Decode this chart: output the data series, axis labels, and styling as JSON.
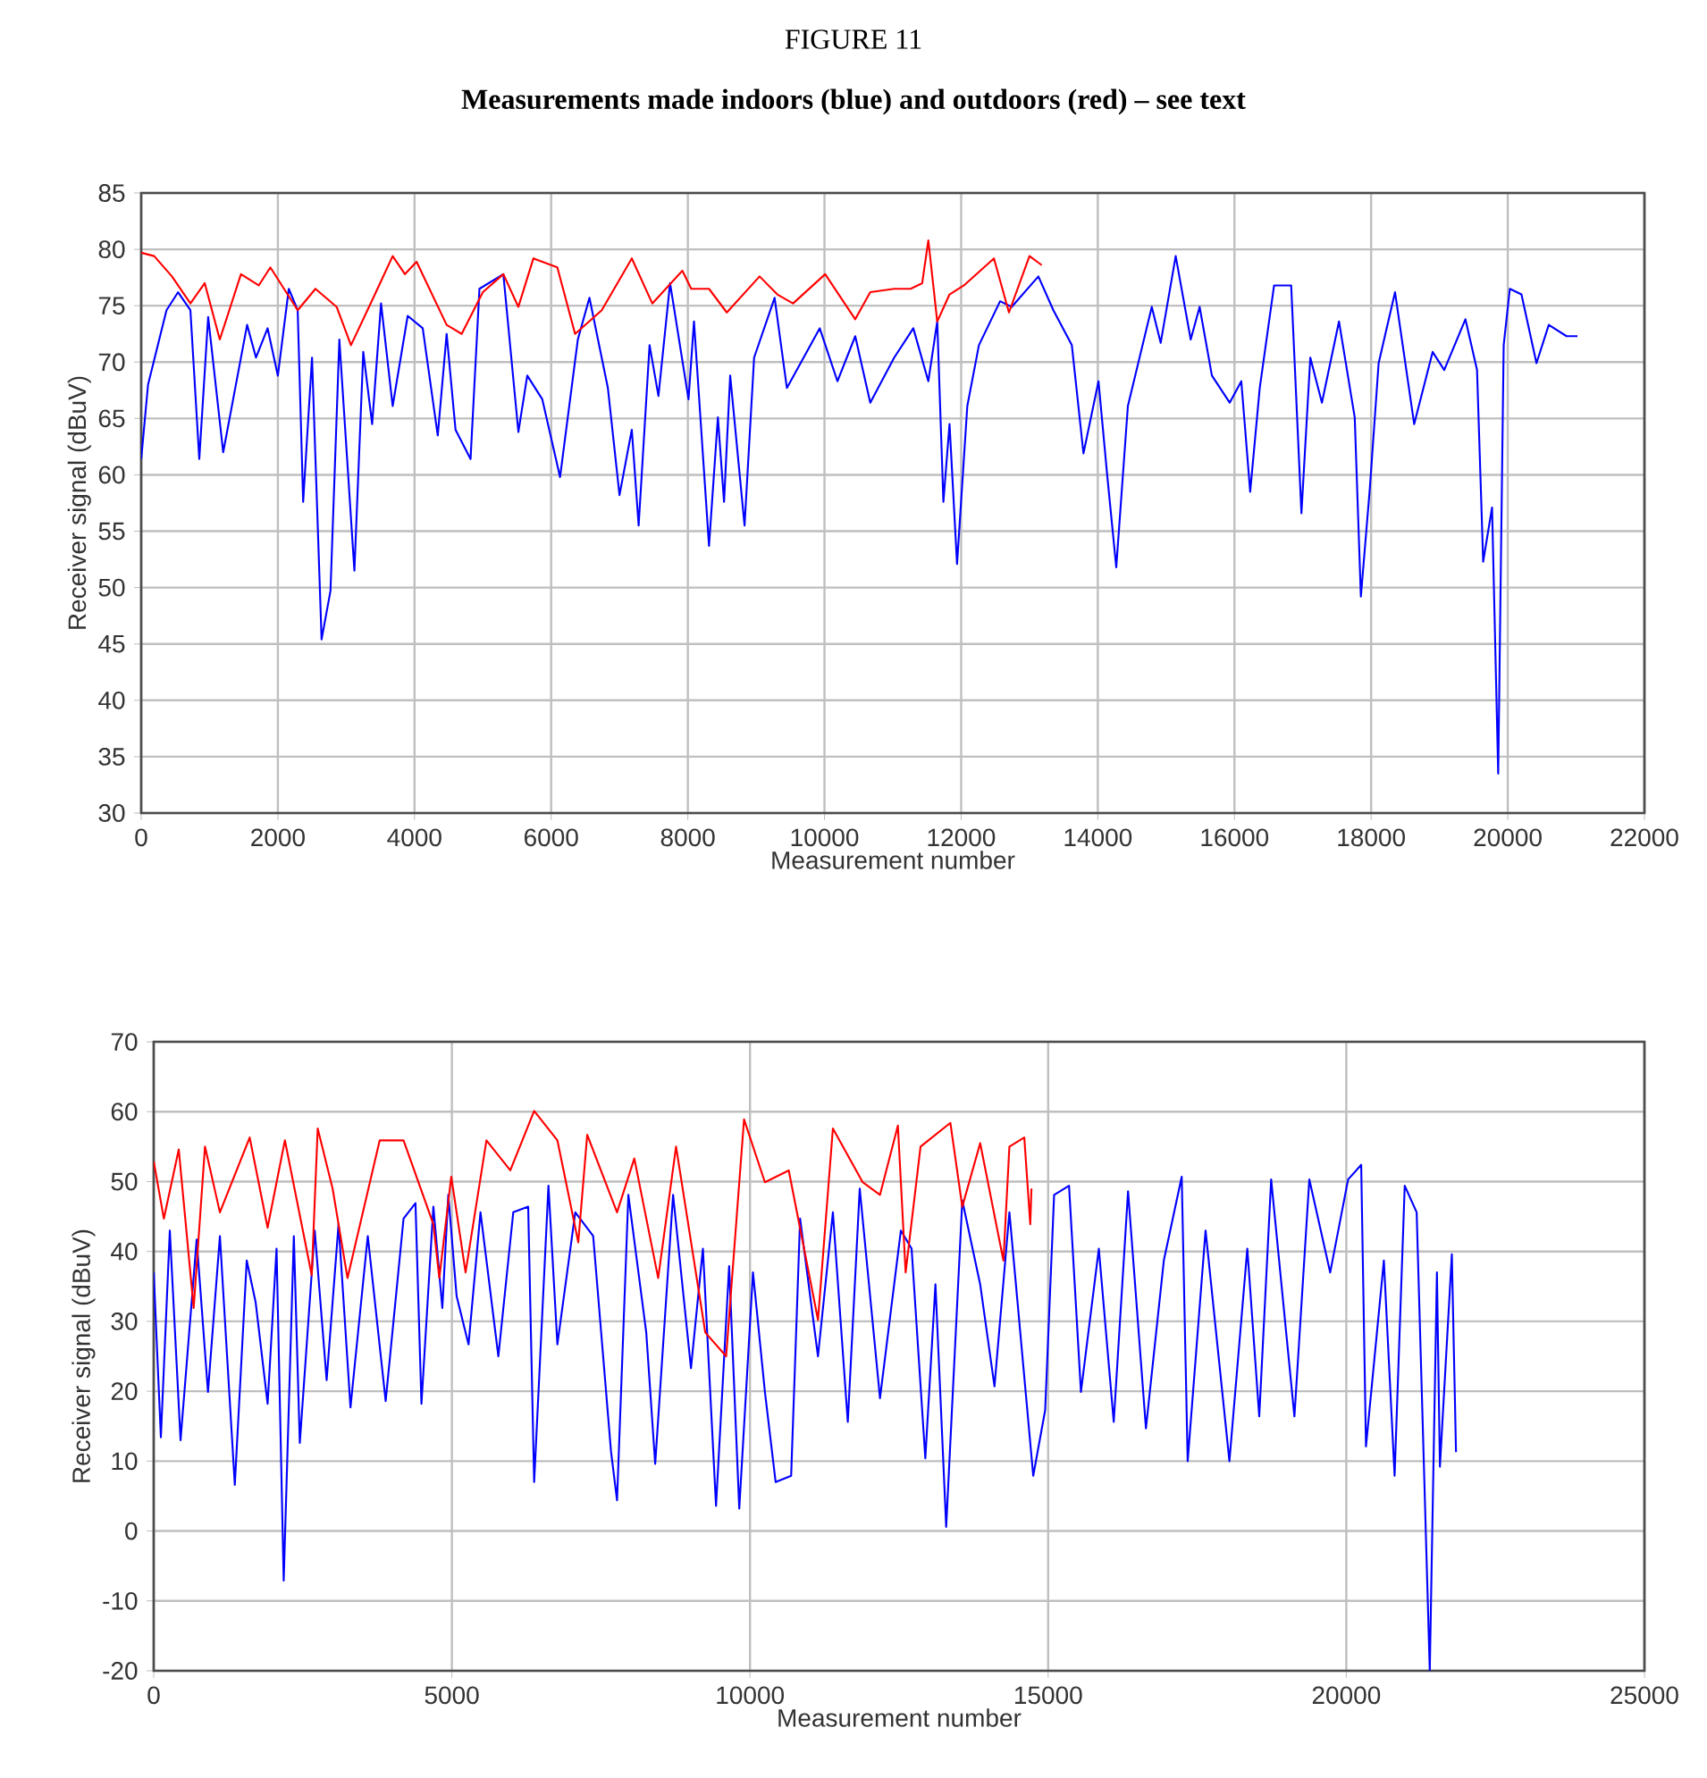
{
  "chart_data": [
    {
      "type": "line",
      "title": "FIGURE 11",
      "subtitle": "**Measurements made indoors (blue) and outdoors (red) – see text**",
      "xlabel": "Measurement number",
      "ylabel": "Receiver signal (dBuV)",
      "xlim": [
        0,
        22000
      ],
      "ylim": [
        30,
        85
      ],
      "xticks": [
        0,
        2000,
        4000,
        6000,
        8000,
        10000,
        12000,
        14000,
        16000,
        18000,
        20000,
        22000
      ],
      "yticks": [
        30,
        35,
        40,
        45,
        50,
        55,
        60,
        65,
        70,
        75,
        80,
        85
      ],
      "grid": true,
      "series": [
        {
          "color": "#0000ff",
          "x": [
            0,
            100,
            370,
            540,
            720,
            850,
            980,
            1200,
            1550,
            1680,
            1850,
            2000,
            2160,
            2290,
            2370,
            2500,
            2640,
            2770,
            2900,
            3120,
            3250,
            3380,
            3510,
            3680,
            3900,
            4120,
            4340,
            4470,
            4600,
            4820,
            4950,
            5300,
            5520,
            5650,
            5870,
            6130,
            6390,
            6560,
            6830,
            7000,
            7180,
            7280,
            7440,
            7570,
            7740,
            8010,
            8090,
            8310,
            8440,
            8530,
            8620,
            8830,
            8970,
            9270,
            9450,
            9930,
            10190,
            10450,
            10670,
            11020,
            11300,
            11520,
            11650,
            11740,
            11830,
            11940,
            12090,
            12260,
            12570,
            12740,
            13130,
            13350,
            13620,
            13790,
            14010,
            14140,
            14270,
            14440,
            14790,
            14920,
            15140,
            15360,
            15490,
            15670,
            15930,
            16100,
            16230,
            16370,
            16580,
            16830,
            16980,
            17110,
            17280,
            17530,
            17760,
            17850,
            17980,
            18110,
            18350,
            18630,
            18900,
            19070,
            19380,
            19550,
            19640,
            19770,
            19860,
            19940,
            20030,
            20200,
            20420,
            20600,
            20860,
            21020
          ],
          "values": [
            61.4,
            68,
            74.6,
            76.2,
            74.6,
            61.4,
            74,
            62,
            73.3,
            70.4,
            73,
            68.8,
            76.5,
            74.6,
            57.6,
            70.4,
            45.4,
            49.7,
            72,
            51.5,
            70.9,
            64.5,
            75.2,
            66.1,
            74.1,
            73,
            63.5,
            72.5,
            64,
            61.4,
            76.5,
            77.8,
            63.8,
            68.8,
            66.7,
            59.8,
            72,
            75.7,
            67.7,
            58.2,
            64,
            55.5,
            71.5,
            67,
            77,
            66.7,
            73.6,
            53.7,
            65.1,
            57.6,
            68.8,
            55.5,
            70.4,
            75.7,
            67.7,
            73,
            68.3,
            72.3,
            66.4,
            70.4,
            73,
            68.3,
            73.6,
            57.6,
            64.5,
            52.1,
            66.1,
            71.5,
            75.4,
            74.9,
            77.6,
            74.6,
            71.5,
            61.9,
            68.3,
            59.8,
            51.8,
            66.1,
            74.9,
            71.7,
            79.4,
            72,
            74.9,
            68.8,
            66.4,
            68.3,
            58.5,
            67.7,
            76.8,
            76.8,
            56.6,
            70.4,
            66.4,
            73.6,
            65.1,
            49.2,
            58.7,
            69.9,
            76.2,
            64.5,
            70.9,
            69.3,
            73.8,
            69.3,
            52.3,
            57.1,
            33.5,
            71.5,
            76.5,
            76,
            69.9,
            73.3,
            72.3,
            72.3
          ]
        },
        {
          "color": "#ff0000",
          "x": [
            0,
            190,
            450,
            720,
            930,
            1150,
            1460,
            1720,
            1890,
            2290,
            2550,
            2860,
            3070,
            3420,
            3680,
            3860,
            4030,
            4470,
            4690,
            5000,
            5300,
            5520,
            5740,
            6090,
            6350,
            6740,
            7180,
            7480,
            7920,
            8050,
            8310,
            8570,
            9050,
            9310,
            9540,
            10010,
            10450,
            10670,
            11020,
            11260,
            11430,
            11520,
            11650,
            11830,
            12040,
            12480,
            12700,
            13000,
            13180
          ],
          "values": [
            79.7,
            79.4,
            77.6,
            75.2,
            77,
            72,
            77.8,
            76.8,
            78.4,
            74.6,
            76.5,
            74.9,
            71.5,
            76,
            79.4,
            77.8,
            78.9,
            73.3,
            72.5,
            76.2,
            77.8,
            74.9,
            79.2,
            78.4,
            72.5,
            74.6,
            79.2,
            75.2,
            78.1,
            76.5,
            76.5,
            74.4,
            77.6,
            76,
            75.2,
            77.8,
            73.8,
            76.2,
            76.5,
            76.5,
            77,
            80.8,
            73.6,
            76,
            76.8,
            79.2,
            74.4,
            79.4,
            78.6
          ]
        }
      ]
    },
    {
      "type": "line",
      "xlabel": "Measurement number",
      "ylabel": "Receiver signal (dBuV)",
      "xlim": [
        0,
        25000
      ],
      "ylim": [
        -20,
        70
      ],
      "xticks": [
        0,
        5000,
        10000,
        15000,
        20000,
        25000
      ],
      "yticks": [
        -20,
        -10,
        0,
        10,
        20,
        30,
        40,
        50,
        60,
        70
      ],
      "grid": true,
      "series": [
        {
          "color": "#0000ff",
          "x": [
            0,
            120,
            270,
            450,
            720,
            910,
            1110,
            1360,
            1560,
            1710,
            1910,
            2060,
            2180,
            2350,
            2450,
            2700,
            2900,
            3100,
            3300,
            3590,
            3890,
            4190,
            4390,
            4490,
            4690,
            4840,
            4940,
            5080,
            5280,
            5480,
            5780,
            6030,
            6280,
            6380,
            6620,
            6770,
            7070,
            7370,
            7670,
            7770,
            7960,
            8260,
            8410,
            8710,
            9010,
            9210,
            9430,
            9650,
            9820,
            10050,
            10250,
            10430,
            10690,
            10840,
            11140,
            11390,
            11640,
            11840,
            12180,
            12530,
            12710,
            12940,
            13110,
            13290,
            13560,
            13860,
            14100,
            14350,
            14750,
            14950,
            15100,
            15350,
            15550,
            15850,
            16100,
            16340,
            16640,
            16940,
            17240,
            17340,
            17640,
            18040,
            18340,
            18540,
            18740,
            19130,
            19380,
            19730,
            20030,
            20250,
            20330,
            20630,
            20810,
            20980,
            21180,
            21400,
            21520,
            21570,
            21770,
            21840
          ],
          "values": [
            37,
            13.4,
            43,
            13,
            41.7,
            19.9,
            42.2,
            6.6,
            38.7,
            32.7,
            18.2,
            40.4,
            -7.1,
            42.2,
            12.6,
            43,
            21.6,
            43.9,
            17.7,
            42.2,
            18.6,
            44.7,
            46.9,
            18.2,
            46.4,
            31.9,
            48.1,
            33.6,
            26.7,
            45.6,
            25,
            45.6,
            46.4,
            7,
            49.4,
            26.7,
            45.6,
            42.2,
            11.3,
            4.4,
            48.1,
            28.4,
            9.6,
            48.1,
            23.3,
            40.4,
            3.6,
            37.9,
            3.2,
            37,
            19.9,
            7,
            7.9,
            44.7,
            25,
            45.6,
            15.6,
            49,
            19,
            43,
            40.4,
            10.4,
            35.3,
            0.6,
            47.3,
            35.3,
            20.7,
            45.6,
            7.9,
            17.3,
            48.1,
            49.4,
            19.9,
            40.4,
            15.6,
            48.6,
            14.7,
            38.7,
            50.7,
            10,
            43,
            10,
            40.4,
            16.4,
            50.3,
            16.4,
            50.3,
            37,
            50.3,
            52.4,
            12.1,
            38.7,
            7.9,
            49.4,
            45.6,
            -20,
            37,
            9.2,
            39.6,
            11.3
          ]
        },
        {
          "color": "#ff0000",
          "x": [
            0,
            170,
            420,
            670,
            860,
            1110,
            1610,
            1910,
            2200,
            2650,
            2750,
            3000,
            3250,
            3790,
            4190,
            4690,
            4790,
            4990,
            5230,
            5580,
            5980,
            6380,
            6770,
            7120,
            7270,
            7770,
            8060,
            8460,
            8760,
            9250,
            9600,
            9900,
            10250,
            10650,
            11140,
            11390,
            11890,
            12180,
            12480,
            12610,
            12860,
            13360,
            13560,
            13860,
            14250,
            14350,
            14600,
            14700,
            14720
          ],
          "values": [
            52.9,
            44.7,
            54.6,
            31.9,
            55,
            45.6,
            56.3,
            43.4,
            55.9,
            36.6,
            57.6,
            49,
            36.2,
            55.9,
            55.9,
            43.9,
            36.2,
            50.7,
            37,
            55.9,
            51.6,
            60.1,
            55.9,
            41.3,
            56.7,
            45.6,
            53.3,
            36.2,
            55,
            28.4,
            25,
            58.9,
            49.9,
            51.6,
            30.2,
            57.6,
            49.9,
            48.1,
            58,
            37,
            55,
            58.4,
            46.4,
            55.5,
            38.7,
            55,
            56.3,
            43.9,
            49
          ]
        }
      ]
    }
  ]
}
